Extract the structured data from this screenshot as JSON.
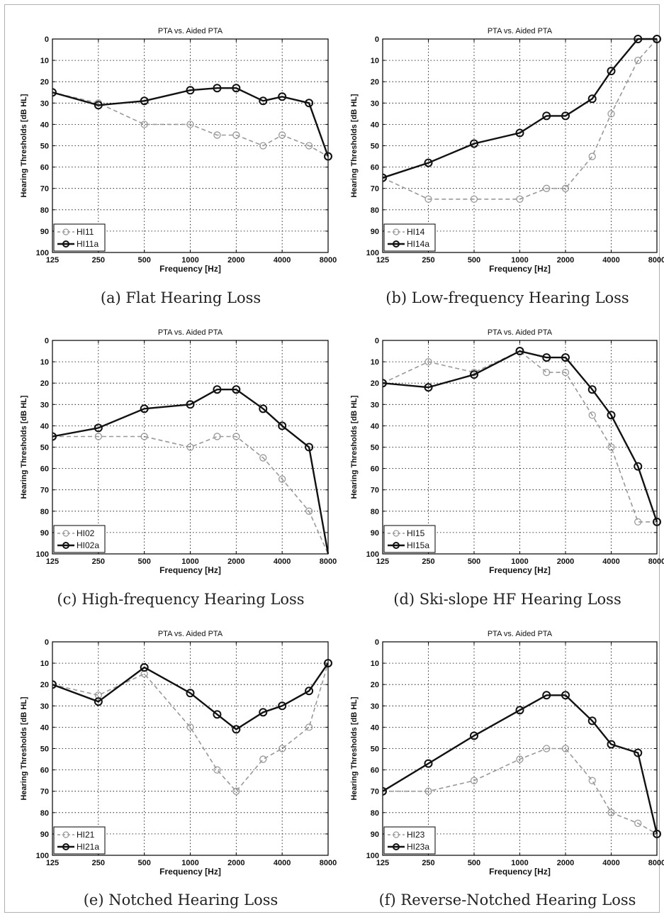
{
  "figure": {
    "panels": [
      {
        "caption": "(a) Flat Hearing Loss"
      },
      {
        "caption": "(b) Low-frequency Hearing Loss"
      },
      {
        "caption": "(c) High-frequency Hearing Loss"
      },
      {
        "caption": "(d) Ski-slope HF Hearing Loss"
      },
      {
        "caption": "(e) Notched Hearing Loss"
      },
      {
        "caption": "(f) Reverse-Notched Hearing Loss"
      }
    ]
  },
  "chart_data": [
    {
      "type": "line",
      "title": "PTA vs. Aided PTA",
      "xlabel": "Frequency [Hz]",
      "ylabel": "Hearing Thresholds [dB HL]",
      "x_scale": "log",
      "x_ticks": [
        "125",
        "250",
        "500",
        "1000",
        "2000",
        "4000",
        "8000"
      ],
      "y_ticks": [
        "0",
        "10",
        "20",
        "30",
        "40",
        "50",
        "60",
        "70",
        "80",
        "90",
        "100"
      ],
      "ylim": [
        0,
        100
      ],
      "y_inverted": true,
      "grid": true,
      "legend_position": "bottom-left",
      "series": [
        {
          "name": "HI11",
          "color": "#999999",
          "style": "dashed",
          "x": [
            125,
            250,
            500,
            1000,
            1500,
            2000,
            3000,
            4000,
            6000,
            8000
          ],
          "values": [
            25,
            30,
            40,
            40,
            45,
            45,
            50,
            45,
            50,
            55
          ]
        },
        {
          "name": "HI11a",
          "color": "#111111",
          "style": "solid",
          "x": [
            125,
            250,
            500,
            1000,
            1500,
            2000,
            3000,
            4000,
            6000,
            8000
          ],
          "values": [
            25,
            31,
            29,
            24,
            23,
            23,
            29,
            27,
            30,
            55
          ]
        }
      ]
    },
    {
      "type": "line",
      "title": "PTA vs. Aided PTA",
      "xlabel": "Frequency [Hz]",
      "ylabel": "Hearing Thresholds [dB HL]",
      "x_scale": "log",
      "x_ticks": [
        "125",
        "250",
        "500",
        "1000",
        "2000",
        "4000",
        "8000"
      ],
      "y_ticks": [
        "0",
        "10",
        "20",
        "30",
        "40",
        "50",
        "60",
        "70",
        "80",
        "90",
        "100"
      ],
      "ylim": [
        0,
        100
      ],
      "y_inverted": true,
      "grid": true,
      "legend_position": "bottom-left",
      "series": [
        {
          "name": "HI14",
          "color": "#999999",
          "style": "dashed",
          "x": [
            125,
            250,
            500,
            1000,
            1500,
            2000,
            3000,
            4000,
            6000,
            8000
          ],
          "values": [
            65,
            75,
            75,
            75,
            70,
            70,
            55,
            35,
            10,
            0
          ]
        },
        {
          "name": "HI14a",
          "color": "#111111",
          "style": "solid",
          "x": [
            125,
            250,
            500,
            1000,
            1500,
            2000,
            3000,
            4000,
            6000,
            8000
          ],
          "values": [
            65,
            58,
            49,
            44,
            36,
            36,
            28,
            15,
            0,
            0
          ]
        }
      ]
    },
    {
      "type": "line",
      "title": "PTA vs. Aided PTA",
      "xlabel": "Frequency [Hz]",
      "ylabel": "Hearing Thresholds [dB HL]",
      "x_scale": "log",
      "x_ticks": [
        "125",
        "250",
        "500",
        "1000",
        "2000",
        "4000",
        "8000"
      ],
      "y_ticks": [
        "0",
        "10",
        "20",
        "30",
        "40",
        "50",
        "60",
        "70",
        "80",
        "90",
        "100"
      ],
      "ylim": [
        0,
        100
      ],
      "y_inverted": true,
      "grid": true,
      "legend_position": "bottom-left",
      "series": [
        {
          "name": "HI02",
          "color": "#999999",
          "style": "dashed",
          "x": [
            125,
            250,
            500,
            1000,
            1500,
            2000,
            3000,
            4000,
            6000,
            8000
          ],
          "values": [
            45,
            45,
            45,
            50,
            45,
            45,
            55,
            65,
            80,
            105
          ]
        },
        {
          "name": "HI02a",
          "color": "#111111",
          "style": "solid",
          "x": [
            125,
            250,
            500,
            1000,
            1500,
            2000,
            3000,
            4000,
            6000,
            8000
          ],
          "values": [
            45,
            41,
            32,
            30,
            23,
            23,
            32,
            40,
            50,
            105
          ]
        }
      ]
    },
    {
      "type": "line",
      "title": "PTA vs. Aided PTA",
      "xlabel": "Frequency [Hz]",
      "ylabel": "Hearing Thresholds [dB HL]",
      "x_scale": "log",
      "x_ticks": [
        "125",
        "250",
        "500",
        "1000",
        "2000",
        "4000",
        "8000"
      ],
      "y_ticks": [
        "0",
        "10",
        "20",
        "30",
        "40",
        "50",
        "60",
        "70",
        "80",
        "90",
        "100"
      ],
      "ylim": [
        0,
        100
      ],
      "y_inverted": true,
      "grid": true,
      "legend_position": "bottom-left",
      "series": [
        {
          "name": "HI15",
          "color": "#999999",
          "style": "dashed",
          "x": [
            125,
            250,
            500,
            1000,
            1500,
            2000,
            3000,
            4000,
            6000,
            8000
          ],
          "values": [
            20,
            10,
            15,
            5,
            15,
            15,
            35,
            50,
            85,
            85
          ]
        },
        {
          "name": "HI15a",
          "color": "#111111",
          "style": "solid",
          "x": [
            125,
            250,
            500,
            1000,
            1500,
            2000,
            3000,
            4000,
            6000,
            8000
          ],
          "values": [
            20,
            22,
            16,
            5,
            8,
            8,
            23,
            35,
            59,
            85
          ]
        }
      ]
    },
    {
      "type": "line",
      "title": "PTA vs. Aided PTA",
      "xlabel": "Frequency [Hz]",
      "ylabel": "Hearing Thresholds [dB HL]",
      "x_scale": "log",
      "x_ticks": [
        "125",
        "250",
        "500",
        "1000",
        "2000",
        "4000",
        "8000"
      ],
      "y_ticks": [
        "0",
        "10",
        "20",
        "30",
        "40",
        "50",
        "60",
        "70",
        "80",
        "90",
        "100"
      ],
      "ylim": [
        0,
        100
      ],
      "y_inverted": true,
      "grid": true,
      "legend_position": "bottom-left",
      "series": [
        {
          "name": "HI21",
          "color": "#999999",
          "style": "dashed",
          "x": [
            125,
            250,
            500,
            1000,
            1500,
            2000,
            3000,
            4000,
            6000,
            8000
          ],
          "values": [
            20,
            25,
            15,
            40,
            60,
            70,
            55,
            50,
            40,
            10
          ]
        },
        {
          "name": "HI21a",
          "color": "#111111",
          "style": "solid",
          "x": [
            125,
            250,
            500,
            1000,
            1500,
            2000,
            3000,
            4000,
            6000,
            8000
          ],
          "values": [
            20,
            28,
            12,
            24,
            34,
            41,
            33,
            30,
            23,
            10
          ]
        }
      ]
    },
    {
      "type": "line",
      "title": "PTA vs. Aided PTA",
      "xlabel": "Frequency [Hz]",
      "ylabel": "Hearing Thresholds [dB HL]",
      "x_scale": "log",
      "x_ticks": [
        "125",
        "250",
        "500",
        "1000",
        "2000",
        "4000",
        "8000"
      ],
      "y_ticks": [
        "0",
        "10",
        "20",
        "30",
        "40",
        "50",
        "60",
        "70",
        "80",
        "90",
        "100"
      ],
      "ylim": [
        0,
        100
      ],
      "y_inverted": true,
      "grid": true,
      "legend_position": "bottom-left",
      "series": [
        {
          "name": "HI23",
          "color": "#999999",
          "style": "dashed",
          "x": [
            125,
            250,
            500,
            1000,
            1500,
            2000,
            3000,
            4000,
            6000,
            8000
          ],
          "values": [
            70,
            70,
            65,
            55,
            50,
            50,
            65,
            80,
            85,
            90
          ]
        },
        {
          "name": "HI23a",
          "color": "#111111",
          "style": "solid",
          "x": [
            125,
            250,
            500,
            1000,
            1500,
            2000,
            3000,
            4000,
            6000,
            8000
          ],
          "values": [
            70,
            57,
            44,
            32,
            25,
            25,
            37,
            48,
            52,
            90
          ]
        }
      ]
    }
  ]
}
